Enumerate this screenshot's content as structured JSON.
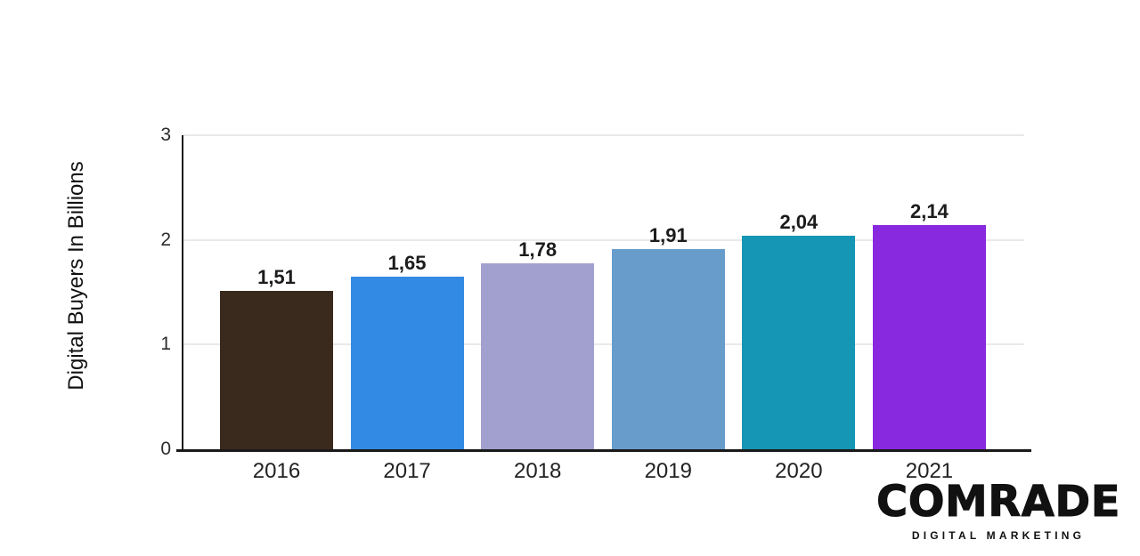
{
  "chart_data": {
    "type": "bar",
    "title": "",
    "xlabel": "",
    "ylabel": "Digital Buyers In Billions",
    "categories": [
      "2016",
      "2017",
      "2018",
      "2019",
      "2020",
      "2021"
    ],
    "values": [
      1.51,
      1.65,
      1.78,
      1.91,
      2.04,
      2.14
    ],
    "value_labels": [
      "1,51",
      "1,65",
      "1,78",
      "1,91",
      "2,04",
      "2,14"
    ],
    "bar_colors": [
      "#3A2A1E",
      "#338AE4",
      "#A2A0CE",
      "#689CCB",
      "#1496B4",
      "#8829DF"
    ],
    "ylim": [
      0,
      3
    ],
    "yticks": [
      0,
      1,
      2,
      3
    ],
    "ytick_labels": [
      "0",
      "1",
      "2",
      "3"
    ],
    "grid": "horizontal-at-1-2-3",
    "legend": "none",
    "axis_color": "#1a1a1a",
    "grid_color": "#e9e9e9",
    "label_color": "#1c1c1c"
  },
  "branding": {
    "logo_text": "COMRADE",
    "logo_subtext": "DIGITAL MARKETING",
    "logo_color": "#111111"
  }
}
